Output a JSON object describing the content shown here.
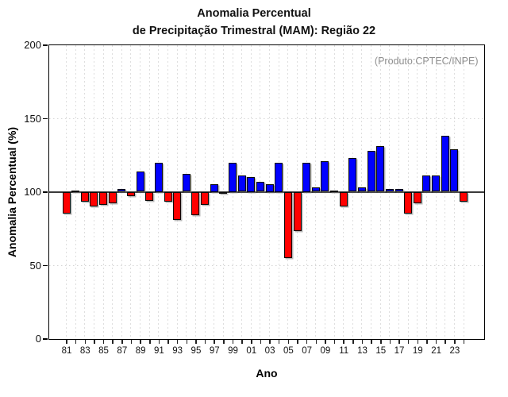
{
  "title": {
    "line1": "Anomalia Percentual",
    "line2": "de Precipitação Trimestral (MAM): Região 22"
  },
  "annotation": "(Produto:CPTEC/INPE)",
  "chart_data": {
    "type": "bar",
    "title": "Anomalia Percentual de Precipitação Trimestral (MAM): Região 22",
    "xlabel": "Ano",
    "ylabel": "Anomalia Percentual (%)",
    "ylim": [
      0,
      200
    ],
    "yticks": [
      0,
      50,
      100,
      150,
      200
    ],
    "baseline": 100,
    "grid": {
      "vertical": "dashed per year",
      "horizontal_dotted_at": [
        50,
        150
      ]
    },
    "legend": "none",
    "colors": {
      "above_baseline": "#0000ff",
      "below_baseline": "#ff0000",
      "baseline_line": "#3a3a3a"
    },
    "categories": [
      "81",
      "82",
      "83",
      "84",
      "85",
      "86",
      "87",
      "88",
      "89",
      "90",
      "91",
      "92",
      "93",
      "94",
      "95",
      "96",
      "97",
      "98",
      "99",
      "00",
      "01",
      "02",
      "03",
      "04",
      "05",
      "06",
      "07",
      "08",
      "09",
      "10",
      "11",
      "12",
      "13",
      "14",
      "15",
      "16",
      "17",
      "18",
      "19",
      "20",
      "21",
      "22",
      "23",
      "24"
    ],
    "values": [
      85,
      101,
      93,
      90,
      91,
      92,
      102,
      97,
      114,
      94,
      120,
      93,
      81,
      112,
      84,
      91,
      105,
      100,
      120,
      111,
      110,
      107,
      105,
      120,
      55,
      73,
      120,
      103,
      121,
      101,
      90,
      123,
      103,
      128,
      131,
      102,
      102,
      85,
      92,
      111,
      111,
      138,
      129,
      93
    ],
    "x_tick_labels": [
      "81",
      "83",
      "85",
      "87",
      "89",
      "91",
      "93",
      "95",
      "97",
      "99",
      "01",
      "03",
      "05",
      "07",
      "09",
      "11",
      "13",
      "15",
      "17",
      "19",
      "21",
      "23"
    ]
  }
}
